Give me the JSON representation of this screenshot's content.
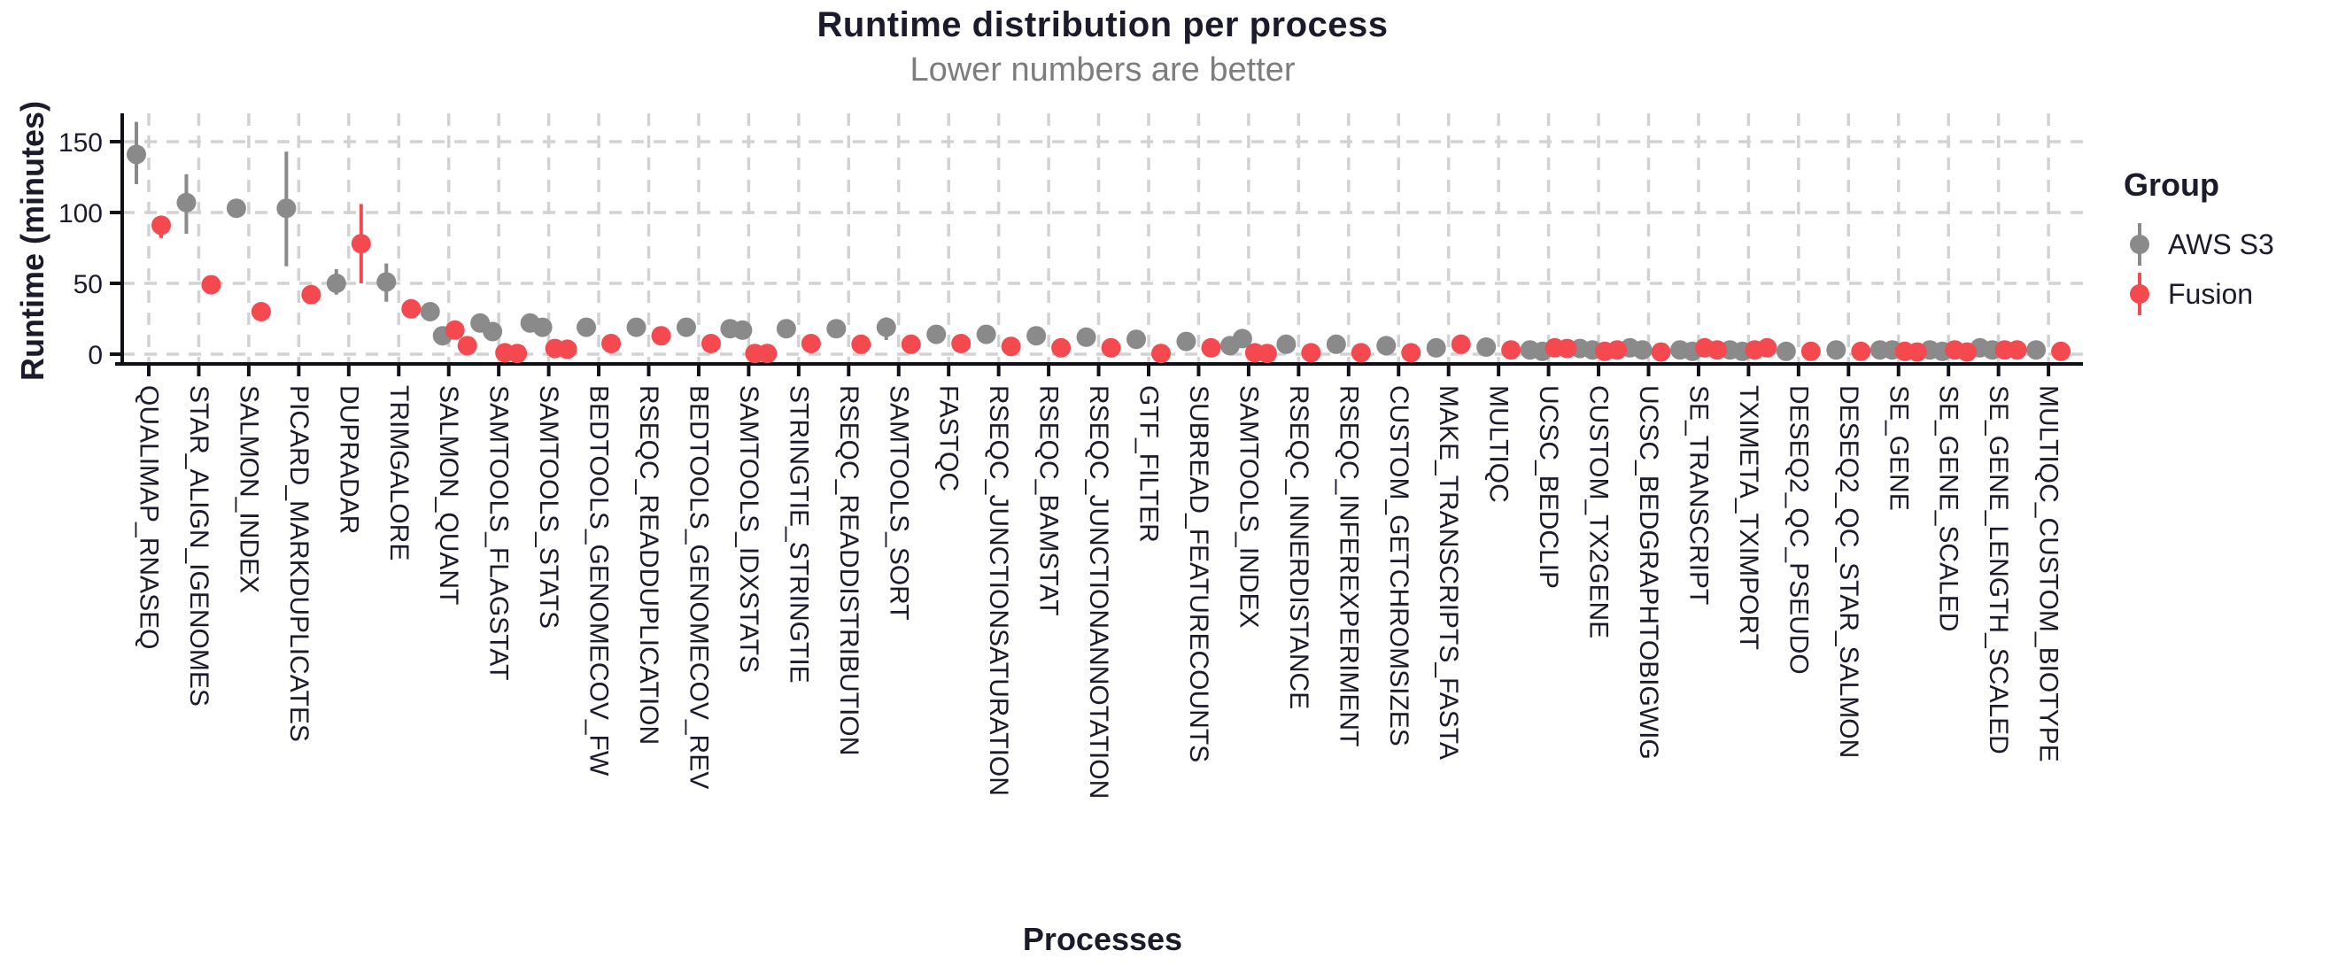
{
  "chart_data": {
    "type": "scatter",
    "title": "Runtime distribution per process",
    "subtitle": "Lower numbers are better",
    "xlabel": "Processes",
    "ylabel": "Runtime (minutes)",
    "ylim": [
      0,
      170
    ],
    "yticks": [
      0,
      50,
      100,
      150
    ],
    "grid": "dashed",
    "legend_title": "Group",
    "legend_position": "right",
    "point_style": "pointrange",
    "categories": [
      "QUALIMAP_RNASEQ",
      "STAR_ALIGN_IGENOMES",
      "SALMON_INDEX",
      "PICARD_MARKDUPLICATES",
      "DUPRADAR",
      "TRIMGALORE",
      "SALMON_QUANT",
      "SAMTOOLS_FLAGSTAT",
      "SAMTOOLS_STATS",
      "BEDTOOLS_GENOMECOV_FW",
      "RSEQC_READDUPLICATION",
      "BEDTOOLS_GENOMECOV_REV",
      "SAMTOOLS_IDXSTATS",
      "STRINGTIE_STRINGTIE",
      "RSEQC_READDISTRIBUTION",
      "SAMTOOLS_SORT",
      "FASTQC",
      "RSEQC_JUNCTIONSATURATION",
      "RSEQC_BAMSTAT",
      "RSEQC_JUNCTIONANNOTATION",
      "GTF_FILTER",
      "SUBREAD_FEATURECOUNTS",
      "SAMTOOLS_INDEX",
      "RSEQC_INNERDISTANCE",
      "RSEQC_INFEREXPERIMENT",
      "CUSTOM_GETCHROMSIZES",
      "MAKE_TRANSCRIPTS_FASTA",
      "MULTIQC",
      "UCSC_BEDCLIP",
      "CUSTOM_TX2GENE",
      "UCSC_BEDGRAPHTOBIGWIG",
      "SE_TRANSCRIPT",
      "TXIMETA_TXIMPORT",
      "DESEQ2_QC_PSEUDO",
      "DESEQ2_QC_STAR_SALMON",
      "SE_GENE",
      "SE_GENE_SCALED",
      "SE_GENE_LENGTH_SCALED",
      "MULTIQC_CUSTOM_BIOTYPE"
    ],
    "series": [
      {
        "name": "AWS S3",
        "color": "#8a8a8a",
        "points": [
          {
            "c": 0,
            "v": 141,
            "lo": 120,
            "hi": 164
          },
          {
            "c": 1,
            "v": 107,
            "lo": 85,
            "hi": 127
          },
          {
            "c": 2,
            "v": 103
          },
          {
            "c": 3,
            "v": 103,
            "lo": 62,
            "hi": 143
          },
          {
            "c": 4,
            "v": 50,
            "lo": 42,
            "hi": 60
          },
          {
            "c": 5,
            "v": 51,
            "lo": 37,
            "hi": 64
          },
          {
            "c": 6,
            "v": 30,
            "dx": -7
          },
          {
            "c": 6,
            "v": 13,
            "dx": 7
          },
          {
            "c": 7,
            "v": 22,
            "dx": -7
          },
          {
            "c": 7,
            "v": 16,
            "dx": 7
          },
          {
            "c": 8,
            "v": 22,
            "dx": -7
          },
          {
            "c": 8,
            "v": 19,
            "dx": 7
          },
          {
            "c": 9,
            "v": 19
          },
          {
            "c": 10,
            "v": 19
          },
          {
            "c": 11,
            "v": 19
          },
          {
            "c": 12,
            "v": 18,
            "dx": -7
          },
          {
            "c": 12,
            "v": 17,
            "dx": 7
          },
          {
            "c": 13,
            "v": 18
          },
          {
            "c": 14,
            "v": 18
          },
          {
            "c": 15,
            "v": 19,
            "lo": 10,
            "hi": 26
          },
          {
            "c": 16,
            "v": 14
          },
          {
            "c": 17,
            "v": 14
          },
          {
            "c": 18,
            "v": 13
          },
          {
            "c": 19,
            "v": 12
          },
          {
            "c": 20,
            "v": 10.5
          },
          {
            "c": 21,
            "v": 9
          },
          {
            "c": 22,
            "v": 6,
            "dx": -7
          },
          {
            "c": 22,
            "v": 11,
            "dx": 7
          },
          {
            "c": 23,
            "v": 7
          },
          {
            "c": 24,
            "v": 7
          },
          {
            "c": 25,
            "v": 6
          },
          {
            "c": 26,
            "v": 4.5
          },
          {
            "c": 27,
            "v": 5
          },
          {
            "c": 28,
            "v": 3,
            "dx": -7
          },
          {
            "c": 28,
            "v": 2,
            "dx": 7
          },
          {
            "c": 29,
            "v": 4,
            "dx": -7
          },
          {
            "c": 29,
            "v": 3,
            "dx": 7
          },
          {
            "c": 30,
            "v": 4.5,
            "dx": -7
          },
          {
            "c": 30,
            "v": 3,
            "dx": 7
          },
          {
            "c": 31,
            "v": 3,
            "dx": -7
          },
          {
            "c": 31,
            "v": 2,
            "dx": 7
          },
          {
            "c": 32,
            "v": 3,
            "dx": -7
          },
          {
            "c": 32,
            "v": 2,
            "dx": 7
          },
          {
            "c": 33,
            "v": 2
          },
          {
            "c": 34,
            "v": 3
          },
          {
            "c": 35,
            "v": 3,
            "dx": -7
          },
          {
            "c": 35,
            "v": 3,
            "dx": 7
          },
          {
            "c": 36,
            "v": 3,
            "dx": -7
          },
          {
            "c": 36,
            "v": 2,
            "dx": 7
          },
          {
            "c": 37,
            "v": 4.5,
            "dx": -7
          },
          {
            "c": 37,
            "v": 3,
            "dx": 7
          },
          {
            "c": 38,
            "v": 3
          }
        ]
      },
      {
        "name": "Fusion",
        "color": "#f3494f",
        "points": [
          {
            "c": 0,
            "v": 91,
            "lo": 82,
            "hi": 97
          },
          {
            "c": 1,
            "v": 49
          },
          {
            "c": 2,
            "v": 30
          },
          {
            "c": 3,
            "v": 42
          },
          {
            "c": 4,
            "v": 78,
            "lo": 50,
            "hi": 106
          },
          {
            "c": 5,
            "v": 32
          },
          {
            "c": 6,
            "v": 17,
            "dx": -7
          },
          {
            "c": 6,
            "v": 6,
            "dx": 7
          },
          {
            "c": 7,
            "v": 1,
            "dx": -7
          },
          {
            "c": 7,
            "v": 0.5,
            "dx": 7
          },
          {
            "c": 8,
            "v": 4,
            "dx": -7
          },
          {
            "c": 8,
            "v": 3.5,
            "dx": 7
          },
          {
            "c": 9,
            "v": 7.5
          },
          {
            "c": 10,
            "v": 13
          },
          {
            "c": 11,
            "v": 7.5
          },
          {
            "c": 12,
            "v": 0.5,
            "dx": -7
          },
          {
            "c": 12,
            "v": 0.5,
            "dx": 7
          },
          {
            "c": 13,
            "v": 7.5
          },
          {
            "c": 14,
            "v": 7
          },
          {
            "c": 15,
            "v": 7
          },
          {
            "c": 16,
            "v": 7.5
          },
          {
            "c": 17,
            "v": 5.5
          },
          {
            "c": 18,
            "v": 4.5
          },
          {
            "c": 19,
            "v": 4.5
          },
          {
            "c": 20,
            "v": 0.5
          },
          {
            "c": 21,
            "v": 4.5
          },
          {
            "c": 22,
            "v": 1,
            "dx": -7
          },
          {
            "c": 22,
            "v": 0.5,
            "dx": 7
          },
          {
            "c": 23,
            "v": 1
          },
          {
            "c": 24,
            "v": 1
          },
          {
            "c": 25,
            "v": 1
          },
          {
            "c": 26,
            "v": 7
          },
          {
            "c": 27,
            "v": 3
          },
          {
            "c": 28,
            "v": 4.5,
            "dx": -7
          },
          {
            "c": 28,
            "v": 4,
            "dx": 7
          },
          {
            "c": 29,
            "v": 2,
            "dx": -7
          },
          {
            "c": 29,
            "v": 3,
            "dx": 7
          },
          {
            "c": 30,
            "v": 1.5
          },
          {
            "c": 31,
            "v": 4.5,
            "dx": -7
          },
          {
            "c": 31,
            "v": 3,
            "dx": 7
          },
          {
            "c": 32,
            "v": 3,
            "dx": -7
          },
          {
            "c": 32,
            "v": 4.5,
            "dx": 7
          },
          {
            "c": 33,
            "v": 2
          },
          {
            "c": 34,
            "v": 2
          },
          {
            "c": 35,
            "v": 2,
            "dx": -7
          },
          {
            "c": 35,
            "v": 1.5,
            "dx": 7
          },
          {
            "c": 36,
            "v": 3,
            "dx": -7
          },
          {
            "c": 36,
            "v": 1.5,
            "dx": 7
          },
          {
            "c": 37,
            "v": 3,
            "dx": -7
          },
          {
            "c": 37,
            "v": 3,
            "dx": 7
          },
          {
            "c": 38,
            "v": 2
          }
        ]
      }
    ],
    "colors": {
      "text": "#1b1b2b",
      "subtitle": "#7d7d7d",
      "axis": "#101018",
      "gridline": "#d2d2d2",
      "background": "#ffffff"
    }
  }
}
